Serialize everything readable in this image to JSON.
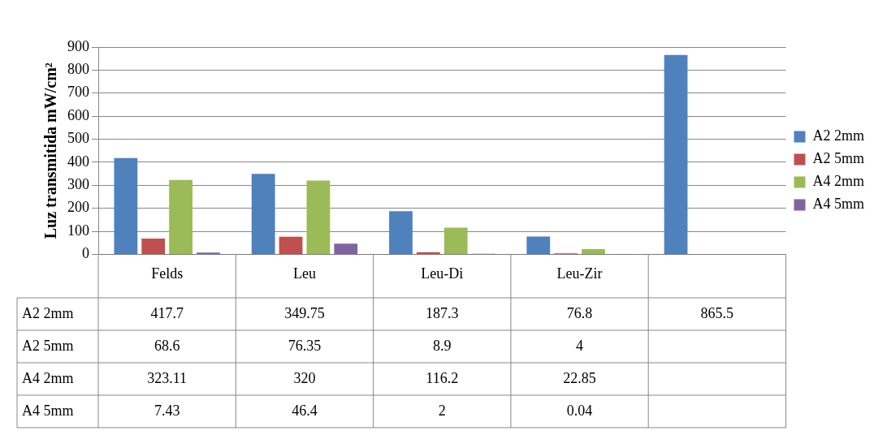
{
  "chart_data": {
    "type": "bar",
    "ylabel": "Luz transmitida mW/cm²",
    "categories": [
      "Felds",
      "Leu",
      "Leu-Di",
      "Leu-Zir",
      null
    ],
    "series": [
      {
        "name": "A2 2mm",
        "color": "#4f81bd",
        "values": [
          417.7,
          349.75,
          187.3,
          76.8,
          865.5
        ]
      },
      {
        "name": "A2 5mm",
        "color": "#c0504d",
        "values": [
          68.6,
          76.35,
          8.9,
          4,
          null
        ]
      },
      {
        "name": "A4 2mm",
        "color": "#9bbb59",
        "values": [
          323.11,
          320,
          116.2,
          22.85,
          null
        ]
      },
      {
        "name": "A4 5mm",
        "color": "#8064a2",
        "values": [
          7.43,
          46.4,
          2,
          0.04,
          null
        ]
      }
    ],
    "ylim": [
      0,
      900
    ],
    "yticks": [
      0,
      100,
      200,
      300,
      400,
      500,
      600,
      700,
      800,
      900
    ],
    "grid": "y",
    "legend": "right",
    "data_labels": true
  }
}
